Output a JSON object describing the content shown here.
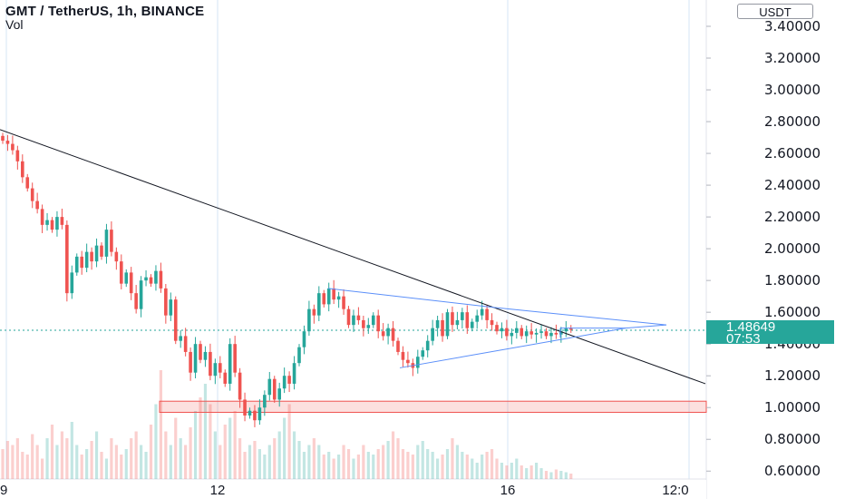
{
  "header": {
    "title": "GMT / TetherUS, 1h, BINANCE",
    "volume_label": "Vol"
  },
  "axis": {
    "unit_button": "USDT",
    "last_price": "1.48649",
    "countdown": "07:53"
  },
  "colors": {
    "up": "#26a69a",
    "down": "#ef5350",
    "trendline": "#131722",
    "pattern": "#5b8ff9",
    "support_zone": "#ef5350",
    "grid": "#d6e4f5",
    "price_line": "#26a69a"
  },
  "chart_data": {
    "type": "candlestick",
    "title": "GMT / TetherUS, 1h, BINANCE",
    "y_ticks": [
      "0.60000",
      "0.80000",
      "1.00000",
      "1.20000",
      "1.40000",
      "1.60000",
      "1.80000",
      "2.00000",
      "2.20000",
      "2.40000",
      "2.60000",
      "2.80000",
      "3.00000",
      "3.20000",
      "3.40000"
    ],
    "x_ticks": [
      "9",
      "12",
      "16",
      "12:0"
    ],
    "ylim": [
      0.55,
      3.48
    ],
    "last_price": 1.48649,
    "close_series": [
      2.68,
      2.66,
      2.62,
      2.55,
      2.45,
      2.38,
      2.3,
      2.25,
      2.15,
      2.18,
      2.12,
      2.2,
      2.15,
      1.72,
      1.85,
      1.95,
      1.88,
      1.98,
      1.92,
      2.02,
      1.95,
      2.12,
      1.98,
      1.92,
      1.78,
      1.85,
      1.72,
      1.62,
      1.8,
      1.82,
      1.78,
      1.86,
      1.75,
      1.58,
      1.68,
      1.42,
      1.45,
      1.35,
      1.22,
      1.4,
      1.3,
      1.35,
      1.2,
      1.28,
      1.22,
      1.15,
      1.4,
      1.22,
      1.05,
      0.95,
      0.98,
      0.92,
      1.0,
      1.08,
      1.18,
      1.05,
      1.12,
      1.2,
      1.15,
      1.28,
      1.38,
      1.48,
      1.62,
      1.58,
      1.72,
      1.65,
      1.75,
      1.68,
      1.7,
      1.62,
      1.52,
      1.58,
      1.55,
      1.5,
      1.52,
      1.58,
      1.48,
      1.45,
      1.5,
      1.42,
      1.35,
      1.3,
      1.28,
      1.25,
      1.32,
      1.36,
      1.42,
      1.5,
      1.55,
      1.45,
      1.6,
      1.52,
      1.55,
      1.6,
      1.5,
      1.54,
      1.58,
      1.62,
      1.55,
      1.52,
      1.48,
      1.5,
      1.45,
      1.47,
      1.5,
      1.45,
      1.48,
      1.46,
      1.47,
      1.48,
      1.45,
      1.47,
      1.46,
      1.48,
      1.5,
      1.49
    ],
    "volume_series": [
      0.22,
      0.28,
      0.25,
      0.3,
      0.2,
      0.18,
      0.33,
      0.25,
      0.15,
      0.3,
      0.4,
      0.25,
      0.35,
      0.3,
      0.42,
      0.25,
      0.18,
      0.22,
      0.28,
      0.35,
      0.2,
      0.15,
      0.3,
      0.25,
      0.18,
      0.22,
      0.3,
      0.35,
      0.25,
      0.2,
      0.4,
      0.55,
      0.8,
      0.35,
      0.25,
      0.45,
      0.3,
      0.25,
      0.38,
      0.5,
      0.6,
      0.7,
      0.55,
      0.35,
      0.25,
      0.4,
      0.45,
      0.5,
      0.3,
      0.2,
      0.25,
      0.28,
      0.22,
      0.18,
      0.25,
      0.3,
      0.35,
      0.45,
      0.55,
      0.35,
      0.28,
      0.2,
      0.25,
      0.3,
      0.25,
      0.18,
      0.2,
      0.15,
      0.18,
      0.25,
      0.22,
      0.15,
      0.18,
      0.25,
      0.2,
      0.18,
      0.22,
      0.25,
      0.28,
      0.35,
      0.3,
      0.22,
      0.2,
      0.18,
      0.25,
      0.28,
      0.22,
      0.2,
      0.15,
      0.18,
      0.22,
      0.3,
      0.25,
      0.2,
      0.18,
      0.15,
      0.12,
      0.18,
      0.2,
      0.22,
      0.15,
      0.12,
      0.1,
      0.12,
      0.15,
      0.1,
      0.08,
      0.1,
      0.12,
      0.08,
      0.06,
      0.05,
      0.07,
      0.06,
      0.05,
      0.04
    ],
    "overlays": {
      "descending_trendline": [
        [
          0,
          2.75
        ],
        [
          160,
          1.15
        ]
      ],
      "support_zone": [
        0.97,
        1.04
      ],
      "triangle_upper": [
        [
          74,
          1.75
        ],
        [
          110,
          1.63
        ],
        [
          150,
          1.52
        ]
      ],
      "triangle_lower": [
        [
          87,
          1.25
        ],
        [
          150,
          1.5
        ]
      ]
    }
  }
}
